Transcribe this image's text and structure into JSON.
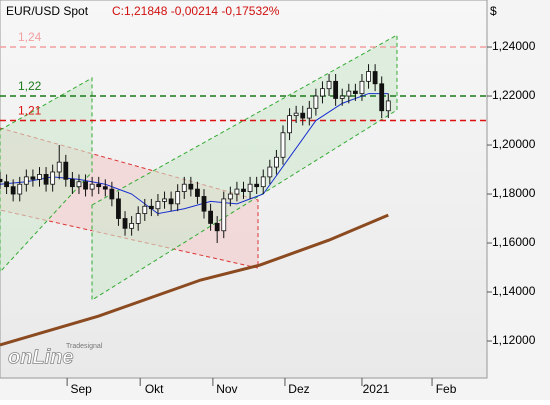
{
  "chart_data": {
    "type": "candlestick",
    "title": "EUR/USD Spot",
    "subtitle": "C:1,21848 -0,00214 -0,17532%",
    "currency": "$",
    "logo": {
      "small": "Tradesignal",
      "big": "onLine"
    },
    "xlim": [
      0,
      148
    ],
    "ylim": [
      1.1049,
      1.2592
    ],
    "xticks": [
      {
        "value": 20.4,
        "label": "Sep"
      },
      {
        "value": 42.6,
        "label": "Okt"
      },
      {
        "value": 64.7,
        "label": "Nov"
      },
      {
        "value": 86.6,
        "label": "Dez"
      },
      {
        "value": 110,
        "label": "2021"
      },
      {
        "value": 131.3,
        "label": "Feb"
      }
    ],
    "yticks": [
      {
        "value": 1.12,
        "label": "1,12000"
      },
      {
        "value": 1.14,
        "label": "1,14000"
      },
      {
        "value": 1.16,
        "label": "1,16000"
      },
      {
        "value": 1.18,
        "label": "1,18000"
      },
      {
        "value": 1.2,
        "label": "1,20000"
      },
      {
        "value": 1.22,
        "label": "1,22000"
      },
      {
        "value": 1.24,
        "label": "1,24000"
      }
    ],
    "up_color": "#ffffff",
    "down_color": "#111111",
    "x": [
      0,
      2,
      4,
      6,
      8,
      10,
      12,
      14,
      16,
      18,
      20,
      22,
      24,
      26,
      28,
      30,
      32,
      34,
      36,
      38,
      40,
      42,
      44,
      46,
      48,
      50,
      52,
      54,
      56,
      58,
      60,
      62,
      64,
      66,
      68,
      70,
      72,
      74,
      76,
      78,
      80,
      82,
      84,
      86,
      88,
      90,
      92,
      94,
      96,
      98,
      100,
      102,
      104,
      106,
      108,
      110,
      112,
      114,
      116,
      118
    ],
    "open": [
      1.186,
      1.185,
      1.183,
      1.18,
      1.184,
      1.187,
      1.186,
      1.188,
      1.184,
      1.189,
      1.193,
      1.186,
      1.183,
      1.185,
      1.182,
      1.184,
      1.183,
      1.182,
      1.178,
      1.17,
      1.166,
      1.168,
      1.172,
      1.175,
      1.174,
      1.177,
      1.178,
      1.176,
      1.181,
      1.184,
      1.182,
      1.179,
      1.173,
      1.168,
      1.165,
      1.178,
      1.18,
      1.182,
      1.181,
      1.184,
      1.183,
      1.187,
      1.191,
      1.195,
      1.205,
      1.212,
      1.213,
      1.211,
      1.215,
      1.22,
      1.223,
      1.226,
      1.219,
      1.22,
      1.222,
      1.221,
      1.226,
      1.23,
      1.225,
      1.214
    ],
    "high": [
      1.189,
      1.188,
      1.186,
      1.187,
      1.19,
      1.19,
      1.191,
      1.191,
      1.192,
      1.2,
      1.196,
      1.189,
      1.188,
      1.188,
      1.187,
      1.187,
      1.186,
      1.185,
      1.181,
      1.173,
      1.171,
      1.175,
      1.178,
      1.178,
      1.18,
      1.181,
      1.181,
      1.184,
      1.187,
      1.187,
      1.185,
      1.182,
      1.176,
      1.171,
      1.181,
      1.183,
      1.185,
      1.185,
      1.187,
      1.187,
      1.19,
      1.194,
      1.198,
      1.208,
      1.215,
      1.216,
      1.216,
      1.218,
      1.223,
      1.226,
      1.229,
      1.229,
      1.223,
      1.225,
      1.225,
      1.229,
      1.233,
      1.233,
      1.228,
      1.221
    ],
    "low": [
      1.182,
      1.18,
      1.177,
      1.177,
      1.181,
      1.183,
      1.183,
      1.181,
      1.181,
      1.186,
      1.183,
      1.18,
      1.18,
      1.179,
      1.179,
      1.18,
      1.179,
      1.175,
      1.167,
      1.163,
      1.163,
      1.165,
      1.169,
      1.171,
      1.171,
      1.174,
      1.173,
      1.173,
      1.178,
      1.179,
      1.176,
      1.17,
      1.165,
      1.16,
      1.162,
      1.175,
      1.177,
      1.178,
      1.178,
      1.18,
      1.18,
      1.184,
      1.188,
      1.192,
      1.202,
      1.209,
      1.208,
      1.208,
      1.212,
      1.217,
      1.22,
      1.216,
      1.216,
      1.217,
      1.218,
      1.218,
      1.223,
      1.222,
      1.211,
      1.211
    ],
    "close": [
      1.185,
      1.183,
      1.18,
      1.184,
      1.187,
      1.186,
      1.188,
      1.184,
      1.189,
      1.193,
      1.186,
      1.183,
      1.185,
      1.182,
      1.184,
      1.183,
      1.182,
      1.178,
      1.17,
      1.166,
      1.168,
      1.172,
      1.175,
      1.174,
      1.177,
      1.178,
      1.176,
      1.181,
      1.184,
      1.182,
      1.179,
      1.173,
      1.168,
      1.165,
      1.178,
      1.18,
      1.182,
      1.181,
      1.184,
      1.183,
      1.187,
      1.191,
      1.195,
      1.205,
      1.212,
      1.213,
      1.211,
      1.215,
      1.22,
      1.223,
      1.226,
      1.219,
      1.22,
      1.222,
      1.221,
      1.226,
      1.23,
      1.225,
      1.214,
      1.218
    ],
    "lines": [
      {
        "color": "#1a2fd0",
        "width": 1,
        "x": [
          0,
          8,
          16,
          24,
          32,
          40,
          48,
          56,
          64,
          72,
          80,
          88,
          96,
          104,
          112,
          118
        ],
        "values": [
          1.184,
          1.185,
          1.187,
          1.186,
          1.184,
          1.18,
          1.172,
          1.174,
          1.177,
          1.176,
          1.18,
          1.195,
          1.21,
          1.217,
          1.221,
          1.221
        ]
      },
      {
        "color": "#8b4a1f",
        "width": 3,
        "x": [
          0,
          30,
          61,
          79,
          100,
          118
        ],
        "values": [
          1.1184,
          1.1302,
          1.1449,
          1.151,
          1.1612,
          1.1714
        ]
      }
    ],
    "levels": [
      {
        "value": 1.24,
        "label": "1,24",
        "color": "#f2a0a0"
      },
      {
        "value": 1.22,
        "label": "1,22",
        "color": "#1a7a1a"
      },
      {
        "value": 1.21,
        "label": "1,21",
        "color": "#dd1111"
      }
    ]
  }
}
